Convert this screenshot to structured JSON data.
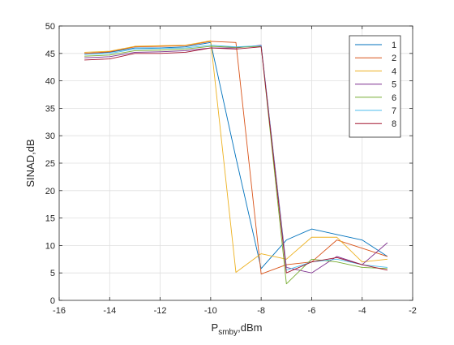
{
  "chart_data": {
    "type": "line",
    "title": "",
    "xlabel_main": "P",
    "xlabel_sub": "smby",
    "xlabel_rest": ",dBm",
    "ylabel": "SINAD,dB",
    "xlim": [
      -16,
      -2
    ],
    "ylim": [
      0,
      50
    ],
    "xticks": [
      -16,
      -14,
      -12,
      -10,
      -8,
      -6,
      -4,
      -2
    ],
    "yticks": [
      0,
      5,
      10,
      15,
      20,
      25,
      30,
      35,
      40,
      45,
      50
    ],
    "xtick_labels": [
      "-16",
      "-14",
      "-12",
      "-10",
      "-8",
      "-6",
      "-4",
      "-2"
    ],
    "ytick_labels": [
      "0",
      "5",
      "10",
      "15",
      "20",
      "25",
      "30",
      "35",
      "40",
      "45",
      "50"
    ],
    "grid": true,
    "legend_position": "top-right",
    "x": [
      -15,
      -14,
      -13,
      -12,
      -11,
      -10,
      -9,
      -8,
      -7,
      -6,
      -5,
      -4,
      -3
    ],
    "series": [
      {
        "name": "1",
        "color": "#0072BD",
        "values": [
          45.0,
          45.2,
          46.0,
          46.0,
          46.2,
          47.0,
          26.0,
          5.8,
          11.0,
          13.0,
          12.0,
          11.0,
          8.0
        ]
      },
      {
        "name": "2",
        "color": "#D95319",
        "values": [
          45.0,
          45.3,
          46.2,
          46.3,
          46.4,
          47.2,
          47.0,
          4.8,
          6.5,
          7.0,
          11.0,
          9.5,
          8.0
        ]
      },
      {
        "name": "4",
        "color": "#EDB120",
        "values": [
          45.2,
          45.4,
          46.3,
          46.4,
          46.5,
          47.3,
          5.1,
          8.5,
          7.5,
          11.5,
          11.5,
          7.0,
          7.5
        ]
      },
      {
        "name": "5",
        "color": "#7E2F8E",
        "values": [
          44.2,
          44.4,
          45.2,
          45.3,
          45.5,
          46.0,
          46.0,
          46.5,
          6.0,
          5.0,
          8.0,
          6.5,
          10.5
        ]
      },
      {
        "name": "6",
        "color": "#77AC30",
        "values": [
          44.5,
          44.7,
          45.5,
          45.6,
          45.8,
          46.3,
          46.1,
          46.3,
          3.0,
          7.5,
          7.0,
          6.0,
          5.8
        ]
      },
      {
        "name": "7",
        "color": "#4DBEEE",
        "values": [
          44.8,
          45.0,
          45.8,
          45.9,
          46.0,
          46.5,
          46.2,
          46.4,
          5.5,
          7.0,
          7.5,
          6.5,
          6.0
        ]
      },
      {
        "name": "8",
        "color": "#A2142F",
        "values": [
          43.8,
          44.0,
          45.0,
          45.0,
          45.2,
          46.0,
          45.8,
          46.2,
          5.0,
          7.0,
          7.8,
          6.5,
          5.5
        ]
      }
    ]
  }
}
